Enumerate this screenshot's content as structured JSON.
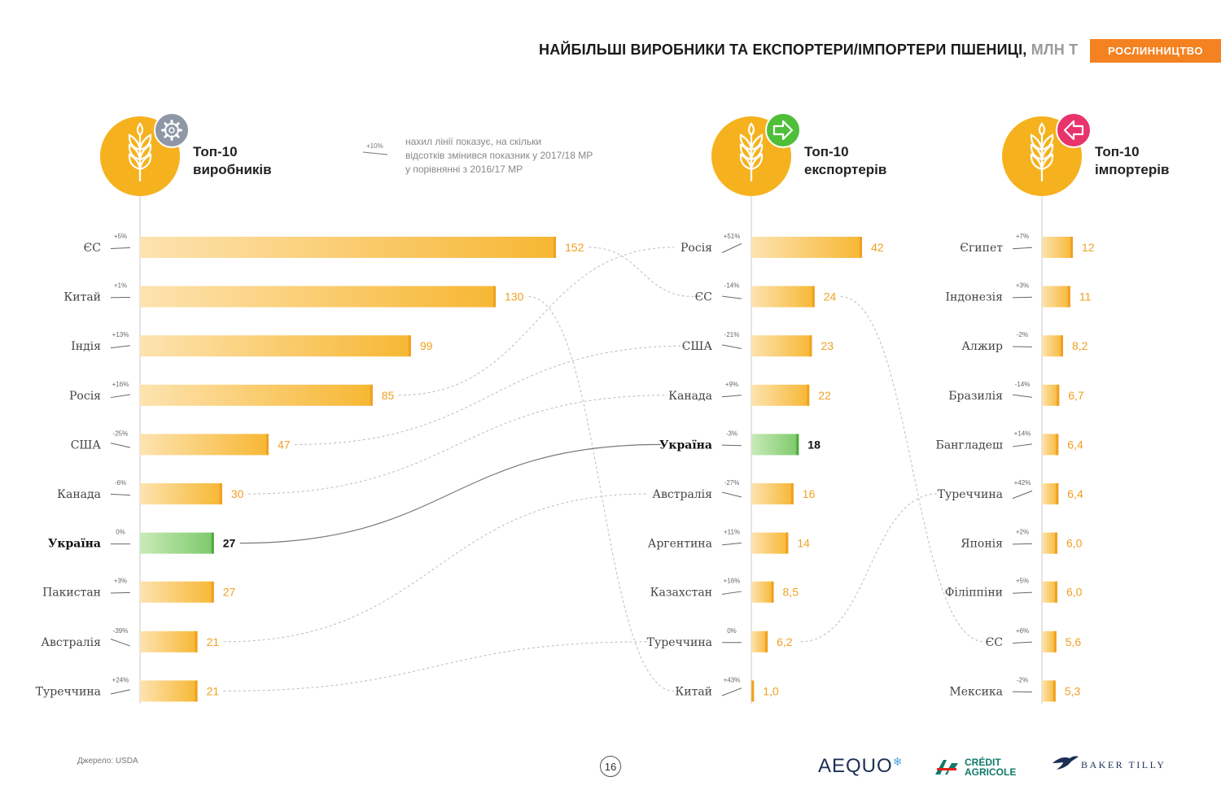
{
  "header": {
    "title": "НАЙБІЛЬШІ ВИРОБНИКИ ТА ЕКСПОРТЕРИ/ІМПОРТЕРИ ПШЕНИЦІ,",
    "units": "МЛН Т",
    "section_tag": "РОСЛИННИЦТВО"
  },
  "legend": {
    "sample_label": "+10%",
    "text_lines": [
      "нахил лінії показує, на скільки",
      "відсотків змінився показник у 2017/18 МР",
      "у порівнянні з 2016/17 МР"
    ]
  },
  "colors": {
    "bar_light": "#fde3b0",
    "bar_dark": "#f7b733",
    "bar_edge": "#f0a020",
    "ukraine_light": "#c9eab8",
    "ukraine_dark": "#7cc96a",
    "ukraine_edge": "#4daa3c",
    "circle": "#f5b21e",
    "value_text": "#f0a020",
    "badge_gear": "#8e97a6",
    "badge_export": "#4fbf3a",
    "badge_import": "#e8336b",
    "axis": "#c9c9c9",
    "connector": "#bbbbbb",
    "connector_ukraine": "#777777"
  },
  "chart_data": [
    {
      "type": "bar",
      "panel": "producers",
      "icon": "wheat-icon",
      "badge_icon": "gear-icon",
      "title_lines": [
        "Топ-10",
        "виробників"
      ],
      "categories": [
        "ЄС",
        "Китай",
        "Індія",
        "Росія",
        "США",
        "Канада",
        "Україна",
        "Пакистан",
        "Австралія",
        "Туреччина"
      ],
      "values": [
        152,
        130,
        99,
        85,
        47,
        30,
        27,
        27,
        21,
        21
      ],
      "value_labels": [
        "152",
        "130",
        "99",
        "85",
        "47",
        "30",
        "27",
        "27",
        "21",
        "21"
      ],
      "changes": [
        "+5%",
        "+1%",
        "+13%",
        "+16%",
        "-25%",
        "-6%",
        "0%",
        "+3%",
        "-39%",
        "+24%"
      ],
      "highlight": "Україна"
    },
    {
      "type": "bar",
      "panel": "exporters",
      "icon": "wheat-icon",
      "badge_icon": "arrow-right-icon",
      "title_lines": [
        "Топ-10",
        "експортерів"
      ],
      "categories": [
        "Росія",
        "ЄС",
        "США",
        "Канада",
        "Україна",
        "Австралія",
        "Аргентина",
        "Казахстан",
        "Туреччина",
        "Китай"
      ],
      "values": [
        42,
        24,
        23,
        22,
        18,
        16,
        14,
        8.5,
        6.2,
        1.0
      ],
      "value_labels": [
        "42",
        "24",
        "23",
        "22",
        "18",
        "16",
        "14",
        "8,5",
        "6,2",
        "1,0"
      ],
      "changes": [
        "+51%",
        "-14%",
        "-21%",
        "+9%",
        "-3%",
        "-27%",
        "+11%",
        "+16%",
        "0%",
        "+43%"
      ],
      "highlight": "Україна"
    },
    {
      "type": "bar",
      "panel": "importers",
      "icon": "wheat-icon",
      "badge_icon": "arrow-left-icon",
      "title_lines": [
        "Топ-10",
        "імпортерів"
      ],
      "categories": [
        "Єгипет",
        "Індонезія",
        "Алжир",
        "Бразилія",
        "Бангладеш",
        "Туреччина",
        "Японія",
        "Філіппіни",
        "ЄС",
        "Мексика"
      ],
      "values": [
        12,
        11,
        8.2,
        6.7,
        6.4,
        6.4,
        6.0,
        6.0,
        5.6,
        5.3
      ],
      "value_labels": [
        "12",
        "11",
        "8,2",
        "6,7",
        "6,4",
        "6,4",
        "6,0",
        "6,0",
        "5,6",
        "5,3"
      ],
      "changes": [
        "+7%",
        "+3%",
        "-2%",
        "-14%",
        "+14%",
        "+42%",
        "+2%",
        "+5%",
        "+6%",
        "-2%"
      ],
      "highlight": ""
    }
  ],
  "footer": {
    "source": "Джерело: USDA",
    "page_number": "16",
    "logo_aequo": "AEQUO",
    "logo_ca_line1": "CRÉDIT",
    "logo_ca_line2": "AGRICOLE",
    "logo_bakertilly": "BAKER TILLY"
  }
}
